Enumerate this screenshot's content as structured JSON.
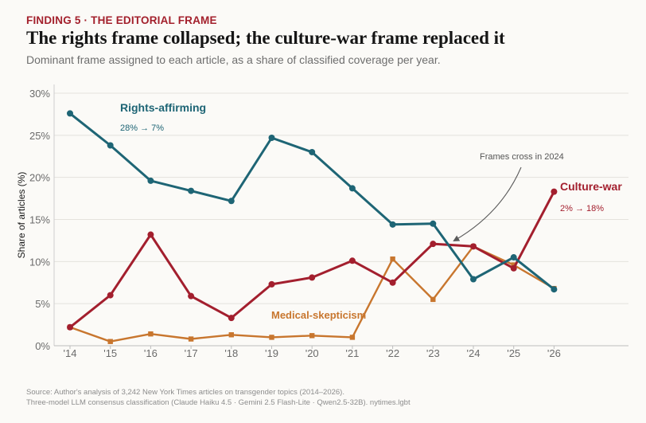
{
  "header": {
    "kicker": "FINDING 5  ·  THE EDITORIAL FRAME",
    "title": "The rights frame collapsed; the culture-war frame replaced it",
    "subtitle": "Dominant frame assigned to each article, as a share of classified coverage per year."
  },
  "footer": {
    "source_line1": "Source: Author's analysis of 3,242 New York Times articles on transgender topics (2014–2026).",
    "source_line2": "Three-model LLM consensus classification (Claude Haiku 4.5 · Gemini 2.5 Flash-Lite · Qwen2.5-32B).  nytimes.lgbt"
  },
  "chart_data": {
    "type": "line",
    "categories": [
      "'14",
      "'15",
      "'16",
      "'17",
      "'18",
      "'19",
      "'20",
      "'21",
      "'22",
      "'23",
      "'24",
      "'25",
      "'26"
    ],
    "ylabel": "Share of articles (%)",
    "ylim": [
      0,
      30
    ],
    "yticks": [
      0,
      5,
      10,
      15,
      20,
      25,
      30
    ],
    "ytick_labels": [
      "0%",
      "5%",
      "10%",
      "15%",
      "20%",
      "25%",
      "30%"
    ],
    "grid": "horizontal",
    "series": [
      {
        "name": "Rights-affirming",
        "color": "#1e6575",
        "marker": "circle",
        "annotation": "28% → 7%",
        "values": [
          27.6,
          23.8,
          19.6,
          18.4,
          17.2,
          24.7,
          23.0,
          18.7,
          14.4,
          14.5,
          7.9,
          10.5,
          6.7
        ]
      },
      {
        "name": "Culture-war",
        "color": "#a31f2e",
        "marker": "circle",
        "annotation": "2% → 18%",
        "values": [
          2.2,
          6.0,
          13.2,
          5.9,
          3.3,
          7.3,
          8.1,
          10.1,
          7.5,
          12.1,
          11.8,
          9.2,
          18.3
        ]
      },
      {
        "name": "Medical-skepticism",
        "color": "#c8762e",
        "marker": "square",
        "annotation": "",
        "values": [
          2.2,
          0.5,
          1.4,
          0.8,
          1.3,
          1.0,
          1.2,
          1.0,
          10.3,
          5.5,
          11.8,
          9.6,
          6.8
        ]
      }
    ],
    "annotations": [
      {
        "text": "Frames cross in 2024"
      }
    ]
  }
}
